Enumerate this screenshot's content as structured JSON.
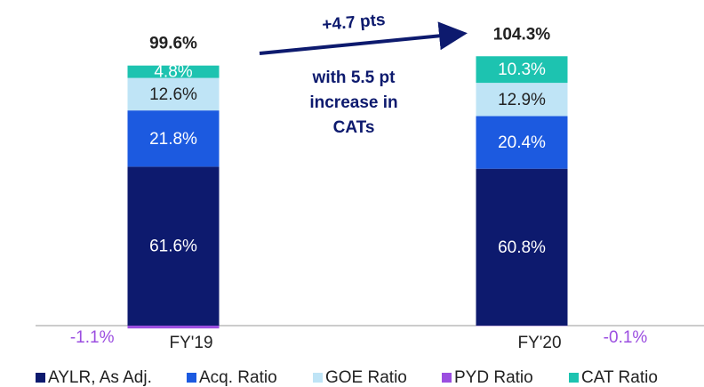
{
  "chart_data": {
    "type": "stacked_bar",
    "categories": [
      "FY'19",
      "FY'20"
    ],
    "series": [
      {
        "name": "AYLR, As Adj.",
        "color": "#0d1a6e",
        "values": [
          61.6,
          60.8
        ],
        "value_labels": [
          "61.6%",
          "60.8%"
        ]
      },
      {
        "name": "Acq. Ratio",
        "color": "#1c5ae0",
        "values": [
          21.8,
          20.4
        ],
        "value_labels": [
          "21.8%",
          "20.4%"
        ]
      },
      {
        "name": "GOE Ratio",
        "color": "#bfe4f6",
        "values": [
          12.6,
          12.9
        ],
        "value_labels": [
          "12.6%",
          "12.9%"
        ]
      },
      {
        "name": "PYD Ratio",
        "color": "#9b4ee0",
        "values": [
          -1.1,
          -0.1
        ],
        "value_labels": [
          "-1.1%",
          "-0.1%"
        ]
      },
      {
        "name": "CAT Ratio",
        "color": "#1dc3b0",
        "values": [
          4.8,
          10.3
        ],
        "value_labels": [
          "4.8%",
          "10.3%"
        ]
      }
    ],
    "totals": [
      99.6,
      104.3
    ],
    "total_labels": [
      "99.6%",
      "104.3%"
    ],
    "arrow_label": "+4.7 pts",
    "annotation_lines": [
      "with 5.5 pt",
      "increase in",
      "CATs"
    ]
  }
}
